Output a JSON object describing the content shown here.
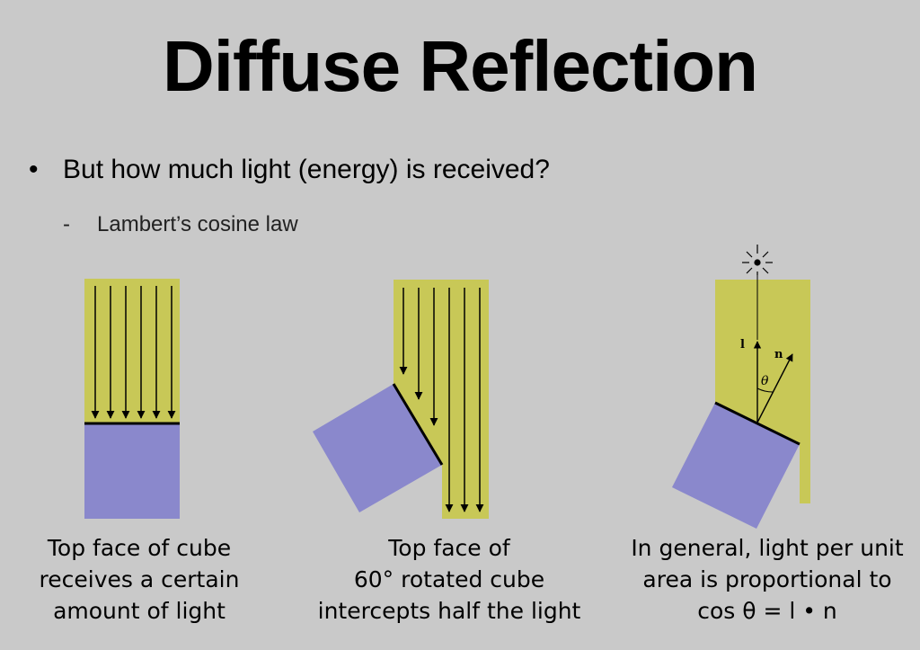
{
  "slide": {
    "title": "Diffuse Reflection",
    "bullet": "But how much light (energy) is received?",
    "bullet_marker": "•",
    "sub_marker": "-",
    "sub_bullet": "Lambert’s cosine law"
  },
  "figures": [
    {
      "caption": [
        "Top face of cube",
        "receives a certain",
        "amount of light"
      ]
    },
    {
      "caption": [
        "Top face of",
        "60° rotated cube",
        "intercepts half the light"
      ]
    },
    {
      "caption": [
        "In general, light per unit",
        "area is proportional to",
        "cos θ = l • n"
      ],
      "labels": {
        "l": "l",
        "n": "n",
        "theta": "θ"
      }
    }
  ],
  "colors": {
    "background": "#c9c9c9",
    "light_beam": "#c8c857",
    "cube": "#8a88cc"
  }
}
